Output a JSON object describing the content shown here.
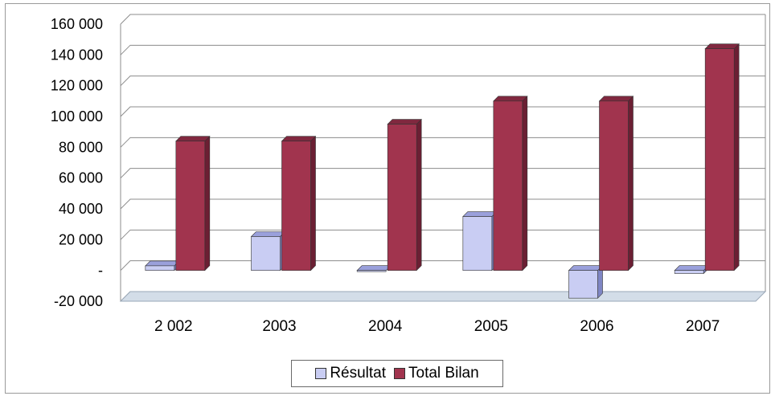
{
  "chart_data": {
    "type": "bar",
    "categories": [
      "2 002",
      "2003",
      "2004",
      "2005",
      "2006",
      "2007"
    ],
    "series": [
      {
        "name": "Résultat",
        "values": [
          3000,
          22000,
          0,
          35000,
          -18000,
          -2000
        ]
      },
      {
        "name": "Total Bilan",
        "values": [
          84000,
          84000,
          95000,
          110000,
          110000,
          144000
        ]
      }
    ],
    "yticks": [
      "160 000",
      "140 000",
      "120 000",
      "100 000",
      "80 000",
      "60 000",
      "40 000",
      "20 000",
      "-",
      "-20 000"
    ],
    "ylim": [
      -20000,
      160000
    ],
    "grid": true,
    "legend_position": "bottom"
  },
  "colors": {
    "resultat_front": "#c9cdf3",
    "resultat_side": "#7f86c4",
    "resultat_top": "#9aa0db",
    "bilan_front": "#a1344e",
    "bilan_side": "#6b1f33",
    "bilan_top": "#80283f",
    "floor": "#d3dde8",
    "grid": "#8c8c8c"
  }
}
